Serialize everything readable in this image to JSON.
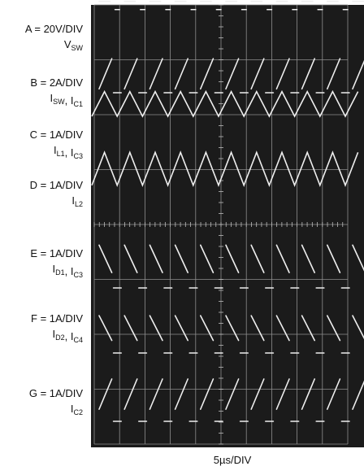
{
  "chart_data": {
    "type": "line",
    "title": "",
    "x_axis_label": "5µs/DIV",
    "time_per_div_us": 5,
    "divisions": {
      "horizontal": 10,
      "vertical": 8
    },
    "period_us": 5,
    "grid": true,
    "colors": {
      "screen": "#1b1b1b",
      "trace": "#eeeeee",
      "grid": "#8f8f8f",
      "label": "#111111"
    },
    "channels": [
      {
        "id": "A",
        "scale": "A = 20V/DIV",
        "signal": [
          [
            "V",
            "SW"
          ]
        ],
        "shape": "pulse",
        "levels_div": {
          "low": 0.3,
          "high": 0.45
        }
      },
      {
        "id": "B",
        "scale": "B = 2A/DIV",
        "signal": [
          [
            "I",
            "SW"
          ],
          [
            "I",
            "C1"
          ]
        ],
        "shape": "ramp",
        "levels_div": {
          "low": 0.15,
          "high": 0.65
        }
      },
      {
        "id": "C",
        "scale": "C = 1A/DIV",
        "signal": [
          [
            "I",
            "L1"
          ],
          [
            "I",
            "C3"
          ]
        ],
        "shape": "triangle",
        "levels_div": {
          "low": 0.4,
          "high": 0.85
        }
      },
      {
        "id": "D",
        "scale": "D = 1A/DIV",
        "signal": [
          [
            "I",
            "L2"
          ]
        ],
        "shape": "triangle",
        "levels_div": {
          "low": 0.3,
          "high": 0.9
        }
      },
      {
        "id": "E",
        "scale": "E = 1A/DIV",
        "signal": [
          [
            "I",
            "D1"
          ],
          [
            "I",
            "C3"
          ]
        ],
        "shape": "down_ramp",
        "levels_div": {
          "low": 0.25,
          "high": 0.75
        }
      },
      {
        "id": "F",
        "scale": "F = 1A/DIV",
        "signal": [
          [
            "I",
            "D2"
          ],
          [
            "I",
            "C4"
          ]
        ],
        "shape": "down_ramp",
        "levels_div": {
          "low": 0.2,
          "high": 0.65
        }
      },
      {
        "id": "G",
        "scale": "G = 1A/DIV",
        "signal": [
          [
            "I",
            "C2"
          ]
        ],
        "shape": "ramp",
        "levels_div": {
          "low": 0.3,
          "high": 0.8
        }
      }
    ]
  }
}
